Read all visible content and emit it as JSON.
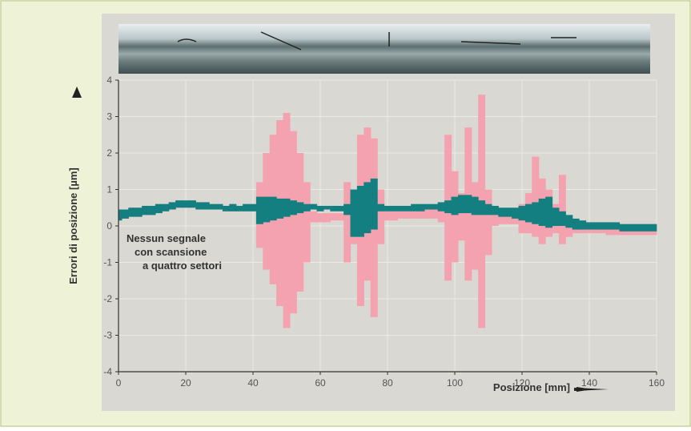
{
  "chart_data": {
    "type": "band",
    "y_label": "Errori di posizione [µm]",
    "x_label": "Posizione [mm]",
    "annotation": [
      "Nessun segnale",
      "con scansione",
      "a quattro settori"
    ],
    "x": [
      0,
      2,
      4,
      6,
      8,
      10,
      12,
      14,
      16,
      18,
      20,
      22,
      24,
      26,
      28,
      30,
      32,
      34,
      36,
      38,
      40,
      42,
      44,
      46,
      48,
      50,
      52,
      54,
      56,
      58,
      60,
      62,
      64,
      66,
      68,
      70,
      72,
      74,
      76,
      78,
      80,
      82,
      84,
      86,
      88,
      90,
      92,
      94,
      96,
      98,
      100,
      102,
      104,
      106,
      108,
      110,
      112,
      114,
      116,
      118,
      120,
      122,
      124,
      126,
      128,
      130,
      132,
      134,
      136,
      138,
      140,
      142,
      144,
      146,
      148,
      150,
      152,
      154,
      156,
      158,
      160
    ],
    "series": [
      {
        "color": "#f4a2af",
        "high": [
          0.45,
          0.45,
          0.5,
          0.5,
          0.55,
          0.55,
          0.6,
          0.6,
          0.65,
          0.7,
          0.7,
          0.7,
          0.65,
          0.65,
          0.6,
          0.6,
          0.55,
          0.6,
          0.55,
          0.6,
          0.6,
          1.2,
          2,
          2.5,
          2.9,
          3.1,
          2.6,
          2,
          1.2,
          0.4,
          0.35,
          0.35,
          0.35,
          0.35,
          1.2,
          0.8,
          2.5,
          2.7,
          2.4,
          1,
          0.4,
          0.4,
          0.4,
          0.4,
          0.4,
          0.45,
          0.45,
          0.5,
          0.6,
          2.5,
          1.5,
          0.9,
          2.7,
          1.2,
          3.6,
          1,
          0.5,
          0.45,
          0.45,
          0.45,
          0.6,
          0.9,
          1.9,
          1.3,
          1,
          0.6,
          1.4,
          0.3,
          0.1,
          0.1,
          0.1,
          0.1,
          0.1,
          0.1,
          0.05,
          0.05,
          0.05,
          0.05,
          0.05,
          0.05,
          0.05
        ],
        "low": [
          0.15,
          0.2,
          0.25,
          0.25,
          0.3,
          0.3,
          0.35,
          0.4,
          0.45,
          0.5,
          0.5,
          0.5,
          0.45,
          0.45,
          0.45,
          0.45,
          0.4,
          0.4,
          0.4,
          0.4,
          0.4,
          -0.6,
          -1.2,
          -1.6,
          -2.2,
          -2.8,
          -2.4,
          -1.8,
          -1,
          0.1,
          0.1,
          0.1,
          0.15,
          0.15,
          -1,
          -0.5,
          -2.2,
          -1.5,
          -2.5,
          -0.5,
          0.15,
          0.15,
          0.2,
          0.2,
          0.2,
          0.2,
          0.2,
          0.2,
          0.1,
          -1.5,
          -1,
          -0.4,
          -1.5,
          -1.2,
          -2.8,
          -0.8,
          0,
          0.05,
          0.05,
          0.05,
          -0.2,
          -0.2,
          -0.3,
          -0.5,
          -0.3,
          -0.2,
          -0.5,
          -0.3,
          -0.2,
          -0.2,
          -0.2,
          -0.2,
          -0.2,
          -0.25,
          -0.25,
          -0.25,
          -0.25,
          -0.25,
          -0.25,
          -0.25,
          -0.25
        ]
      },
      {
        "color": "#147f80",
        "high": [
          0.45,
          0.45,
          0.5,
          0.5,
          0.55,
          0.55,
          0.6,
          0.6,
          0.65,
          0.7,
          0.7,
          0.7,
          0.65,
          0.65,
          0.6,
          0.6,
          0.55,
          0.6,
          0.55,
          0.6,
          0.6,
          0.8,
          0.8,
          0.8,
          0.75,
          0.75,
          0.7,
          0.65,
          0.6,
          0.6,
          0.55,
          0.55,
          0.55,
          0.55,
          0.6,
          1.0,
          1.1,
          1.2,
          1.3,
          0.6,
          0.55,
          0.55,
          0.55,
          0.55,
          0.6,
          0.6,
          0.6,
          0.6,
          0.65,
          0.7,
          0.8,
          0.85,
          0.85,
          0.8,
          0.7,
          0.6,
          0.55,
          0.5,
          0.5,
          0.5,
          0.55,
          0.6,
          0.65,
          0.75,
          0.8,
          0.5,
          0.4,
          0.3,
          0.2,
          0.15,
          0.1,
          0.1,
          0.1,
          0.1,
          0.1,
          0.05,
          0.05,
          0.05,
          0.05,
          0.05,
          0.05
        ],
        "low": [
          0.15,
          0.2,
          0.25,
          0.25,
          0.3,
          0.3,
          0.35,
          0.4,
          0.45,
          0.5,
          0.5,
          0.5,
          0.45,
          0.45,
          0.45,
          0.45,
          0.4,
          0.4,
          0.4,
          0.4,
          0.4,
          0.05,
          0.1,
          0.15,
          0.2,
          0.25,
          0.3,
          0.35,
          0.4,
          0.45,
          0.4,
          0.45,
          0.4,
          0.4,
          0.3,
          -0.3,
          -0.3,
          -0.2,
          -0.1,
          0.4,
          0.4,
          0.4,
          0.4,
          0.4,
          0.4,
          0.4,
          0.45,
          0.45,
          0.4,
          0.35,
          0.3,
          0.35,
          0.35,
          0.3,
          0.3,
          0.3,
          0.3,
          0.25,
          0.25,
          0.2,
          0.15,
          0.1,
          0.05,
          0,
          -0.05,
          0,
          0,
          -0.05,
          -0.1,
          -0.1,
          -0.1,
          -0.1,
          -0.1,
          -0.1,
          -0.1,
          -0.15,
          -0.15,
          -0.15,
          -0.15,
          -0.15,
          -0.15
        ]
      }
    ],
    "xlim": [
      0,
      160
    ],
    "xticks": [
      0,
      20,
      40,
      60,
      80,
      100,
      120,
      140,
      160
    ],
    "ylim": [
      -4,
      4
    ],
    "yticks": [
      -4,
      -3,
      -2,
      -1,
      0,
      1,
      2,
      3,
      4
    ],
    "grid": true
  }
}
